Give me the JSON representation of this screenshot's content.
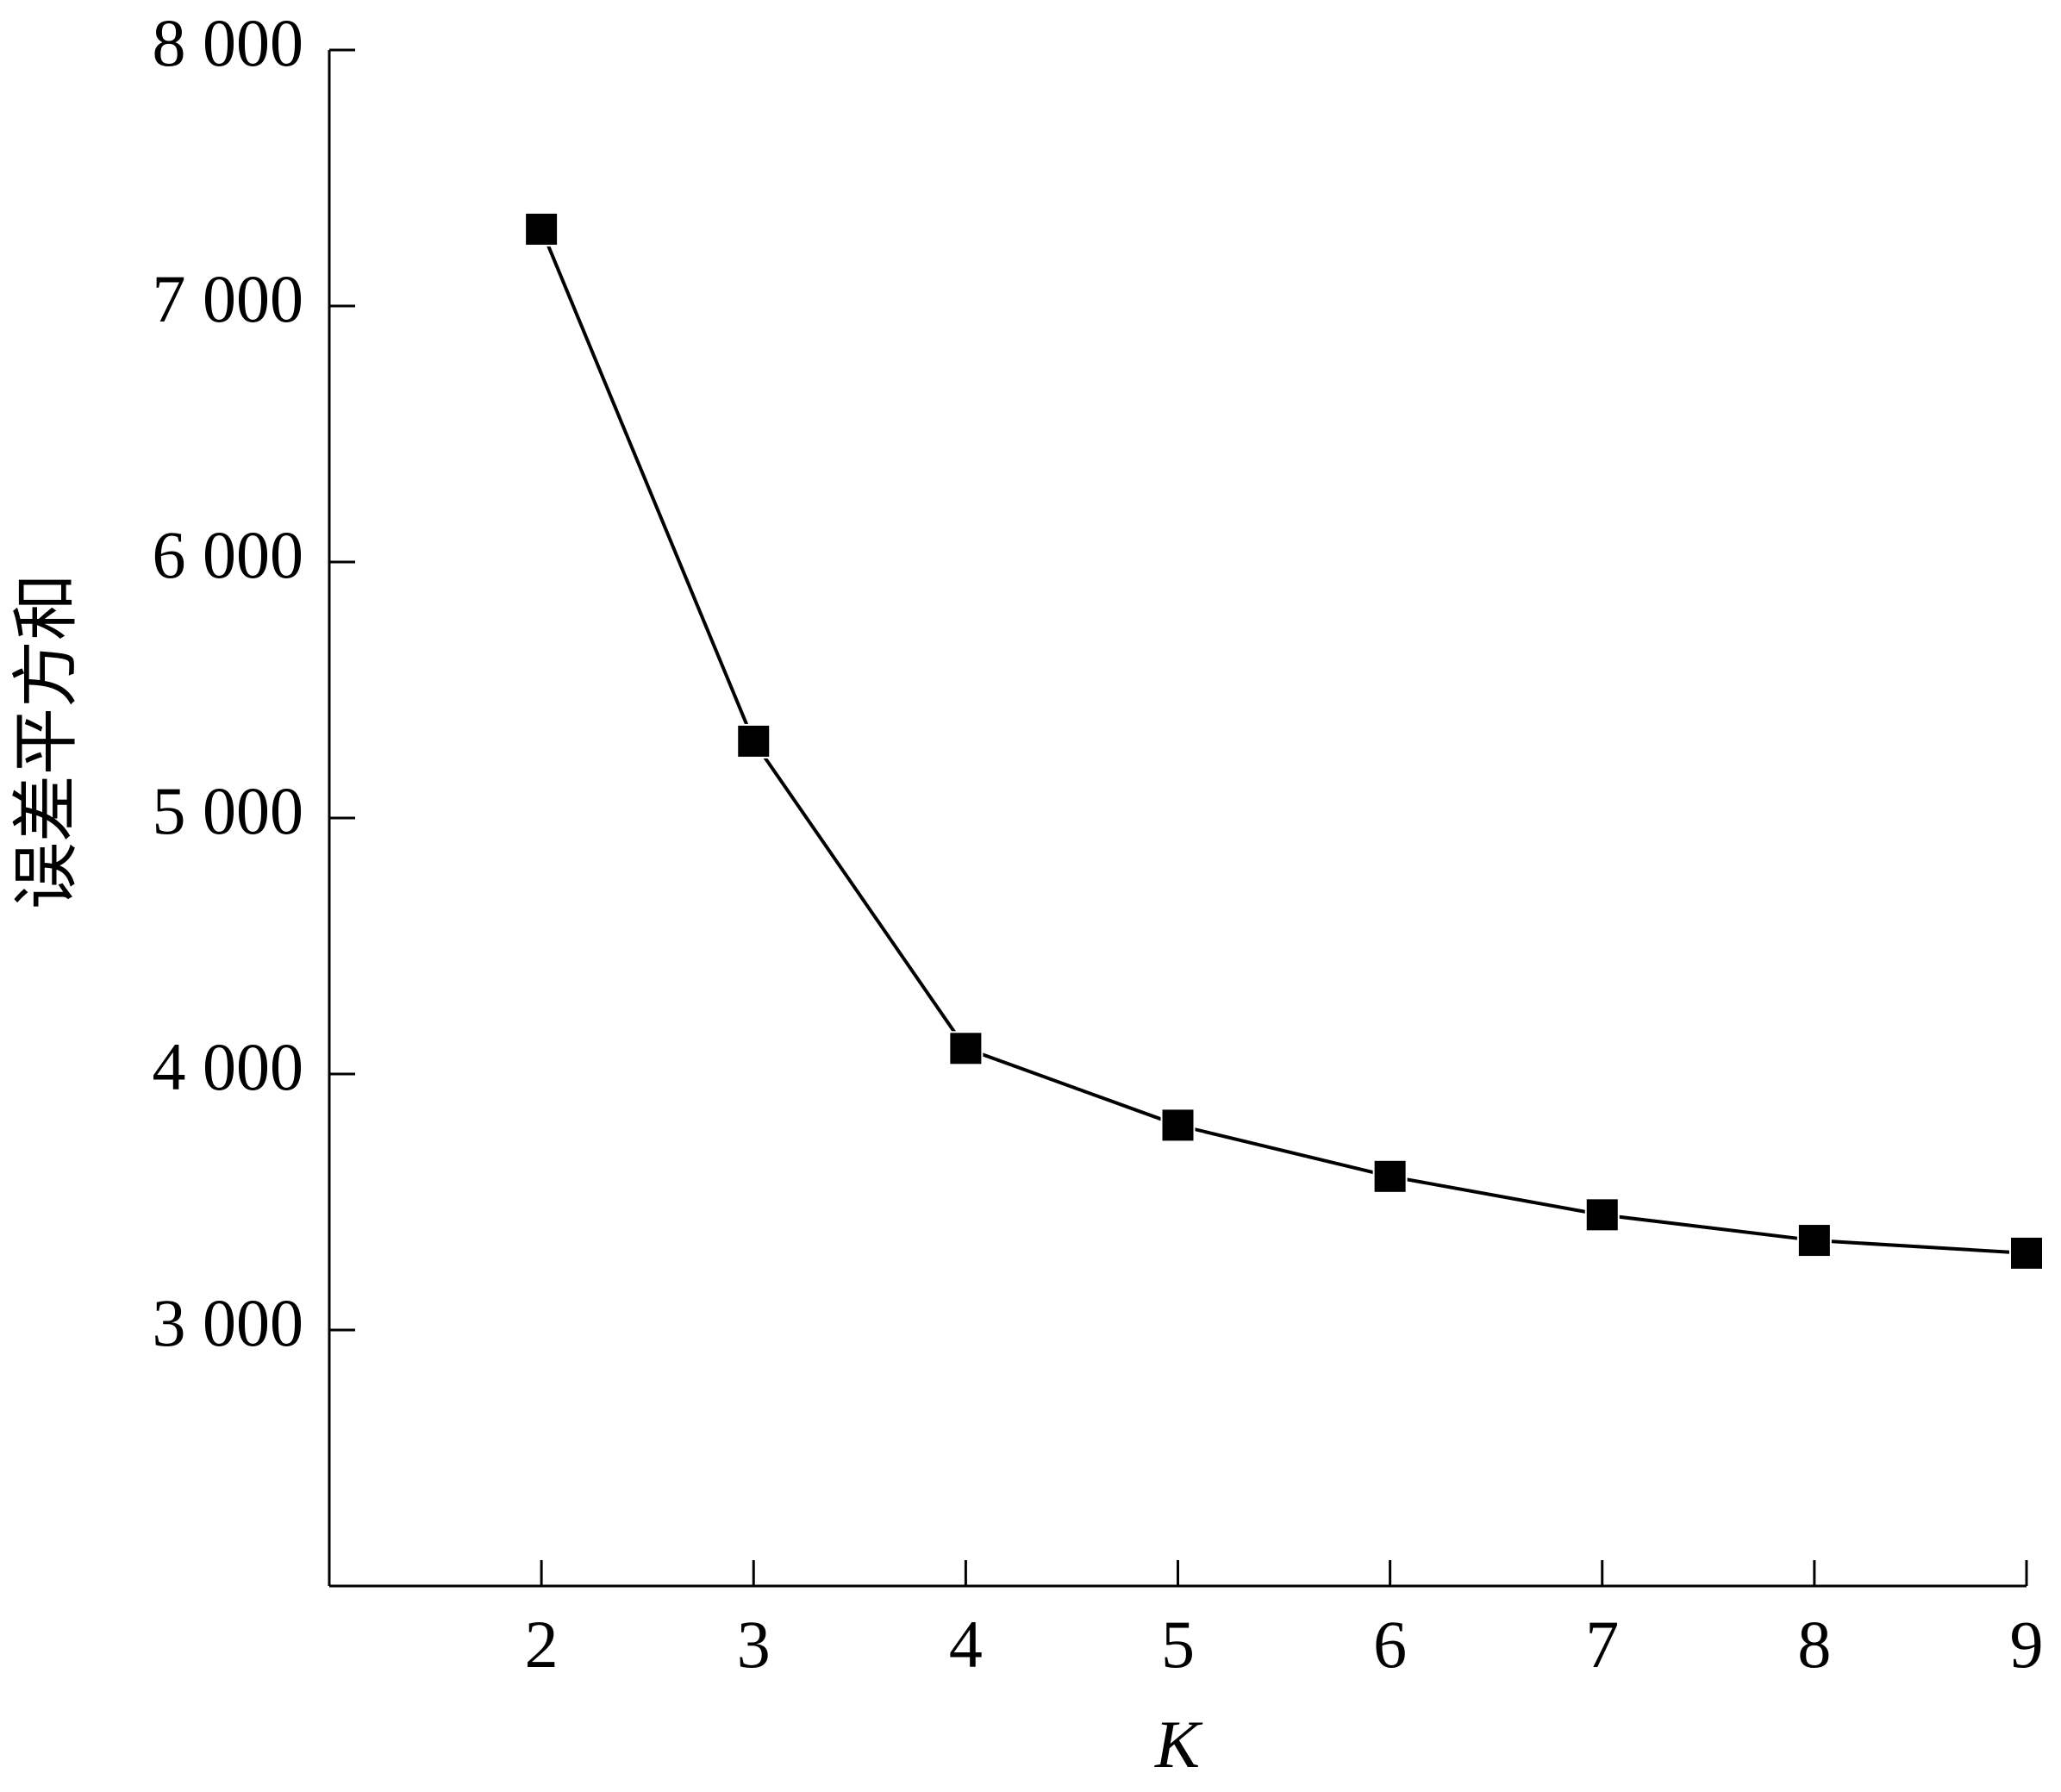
{
  "chart_data": {
    "type": "line",
    "x_label": "K",
    "y_label": "误差平方和",
    "x": [
      2,
      3,
      4,
      5,
      6,
      7,
      8,
      9
    ],
    "series": [
      {
        "color": "#000000",
        "marker": "square",
        "values": [
          7300,
          5300,
          4100,
          3800,
          3600,
          3450,
          3350,
          3300
        ]
      }
    ],
    "xlim": [
      1,
      9
    ],
    "xticks": [
      2,
      3,
      4,
      5,
      6,
      7,
      8,
      9
    ],
    "ylim": [
      2000,
      8000
    ],
    "yticks": [
      {
        "value": 3000,
        "label": "3 000"
      },
      {
        "value": 4000,
        "label": "4 000"
      },
      {
        "value": 5000,
        "label": "5 000"
      },
      {
        "value": 6000,
        "label": "6 000"
      },
      {
        "value": 7000,
        "label": "7 000"
      },
      {
        "value": 8000,
        "label": "8 000"
      }
    ],
    "grid": false
  }
}
